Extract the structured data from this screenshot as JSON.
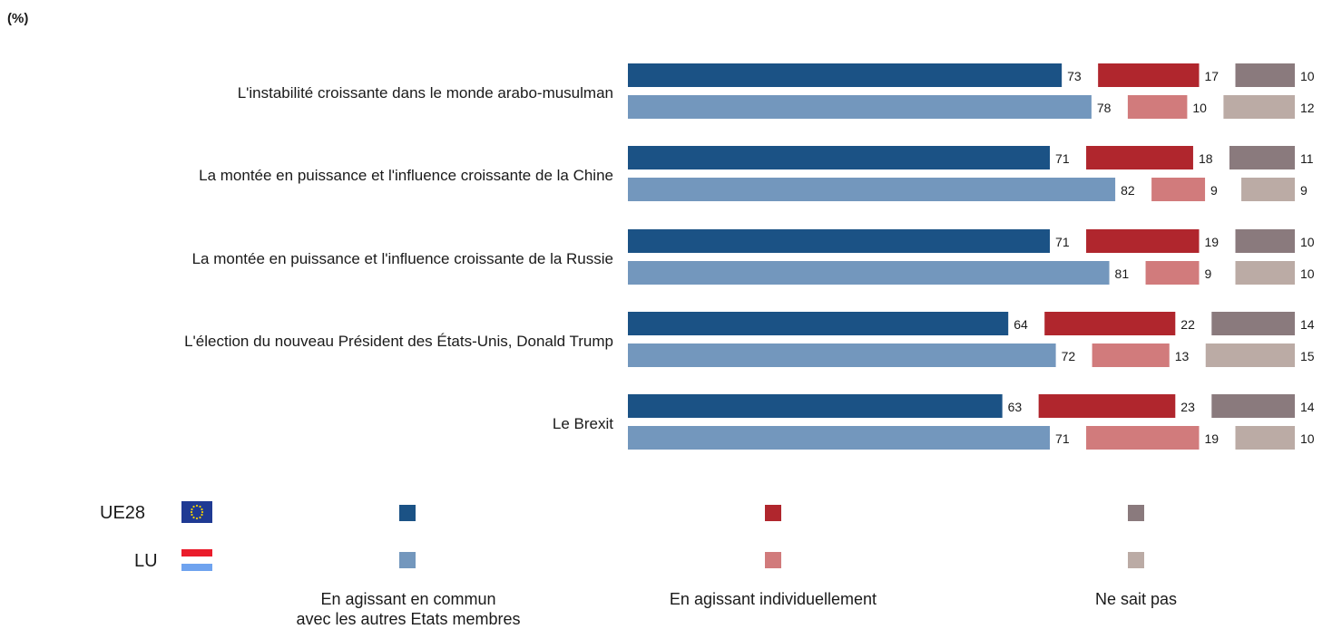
{
  "unit": "(%)",
  "colors": {
    "eu": [
      "#1b5285",
      "#b0262d",
      "#8a7a7d"
    ],
    "lu": [
      "#7397bd",
      "#d17b7c",
      "#bbaba5"
    ]
  },
  "chart_data": {
    "type": "bar",
    "orientation": "horizontal",
    "stacked": true,
    "categories": [
      "L'instabilité croissante dans le monde arabo-musulman",
      "La montée en puissance et l'influence croissante de la Chine",
      "La montée en puissance et l'influence croissante de la Russie",
      "L'élection du nouveau Président des États-Unis, Donald Trump",
      "Le Brexit"
    ],
    "groups": [
      "UE28",
      "LU"
    ],
    "series": [
      {
        "name": "En agissant en commun avec les autres Etats membres",
        "UE28": [
          73,
          71,
          71,
          64,
          63
        ],
        "LU": [
          78,
          82,
          81,
          72,
          71
        ]
      },
      {
        "name": "En agissant individuellement",
        "UE28": [
          17,
          18,
          19,
          22,
          23
        ],
        "LU": [
          10,
          9,
          9,
          13,
          19
        ]
      },
      {
        "name": "Ne sait pas",
        "UE28": [
          10,
          11,
          10,
          14,
          14
        ],
        "LU": [
          12,
          9,
          10,
          15,
          10
        ]
      }
    ],
    "xlim": [
      0,
      100
    ],
    "legend": {
      "rows": [
        "UE28",
        "LU"
      ],
      "labels": [
        "En agissant en commun\navec les autres Etats membres",
        "En agissant individuellement",
        "Ne sait pas"
      ]
    }
  }
}
